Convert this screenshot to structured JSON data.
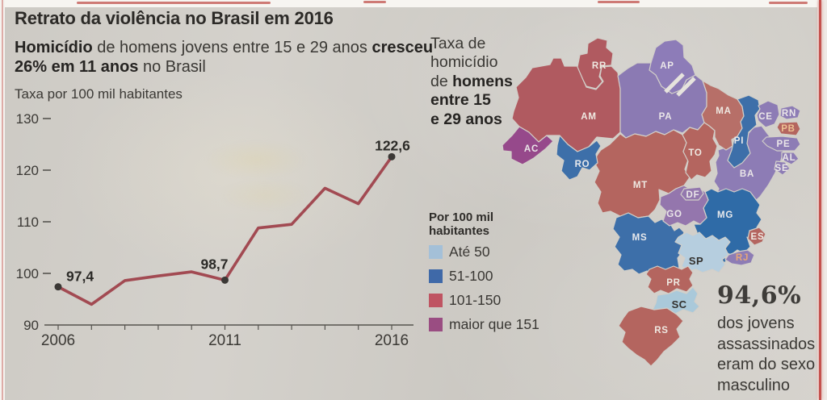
{
  "page": {
    "title": "Retrato da violência no Brasil em 2016",
    "subtitle_segments": [
      {
        "text": "Homicídio",
        "bold": true
      },
      {
        "text": " de homens jovens entre 15 e 29 anos ",
        "bold": false
      },
      {
        "text": "cresceu\n26% em 11 anos",
        "bold": true
      },
      {
        "text": " no Brasil",
        "bold": false
      }
    ],
    "stat": {
      "value": "94,6%",
      "description": "dos jovens\nassassinados\neram do sexo\nmasculino"
    }
  },
  "map_intro_segments": [
    {
      "text": "Taxa de\nhomicídio\nde ",
      "bold": false
    },
    {
      "text": "homens\nentre 15\ne 29 anos",
      "bold": true
    }
  ],
  "chart_data": [
    {
      "type": "line",
      "title": "Homicídio de homens jovens entre 15 e 29 anos cresceu 26% em 11 anos no Brasil",
      "ylabel": "Taxa por 100 mil habitantes",
      "x": [
        2006,
        2007,
        2008,
        2009,
        2010,
        2011,
        2012,
        2013,
        2014,
        2015,
        2016
      ],
      "values": [
        97.4,
        94.0,
        98.6,
        99.5,
        100.3,
        98.7,
        108.8,
        109.5,
        116.5,
        113.5,
        122.6
      ],
      "ylim": [
        90,
        130
      ],
      "yticks": [
        90,
        100,
        110,
        120,
        130
      ],
      "xtick_labels": [
        2006,
        2011,
        2016
      ],
      "grid": false,
      "line_color": "#a24a52",
      "point_color": "#3b3835",
      "tick_color": "#56544f",
      "text_color": "#3b3935",
      "annotations": [
        {
          "x": 2006,
          "label": "97,4"
        },
        {
          "x": 2011,
          "label": "98,7"
        },
        {
          "x": 2016,
          "label": "122,6"
        }
      ]
    },
    {
      "type": "choropleth",
      "title": "Taxa de homicídio de homens entre 15 e 29 anos",
      "unit": "Por 100 mil habitantes",
      "legend": [
        {
          "label": "Até 50",
          "color": "#a4c0d8"
        },
        {
          "label": "51-100",
          "color": "#3f69a8"
        },
        {
          "label": "101-150",
          "color": "#bf5462"
        },
        {
          "label": "maior que 151",
          "color": "#9a4d82"
        }
      ],
      "states": [
        {
          "code": "AM",
          "value": "101-150",
          "fill": "#b05a60",
          "label_color": "#efe9e2"
        },
        {
          "code": "PA",
          "value": "maior que 151",
          "fill": "#8b7ab3",
          "label_color": "#eae6e8"
        },
        {
          "code": "MT",
          "value": "101-150",
          "fill": "#b4655f",
          "label_color": "#efe9e2"
        },
        {
          "code": "BA",
          "value": "maior que 151",
          "fill": "#8d7cb5",
          "label_color": "#eae6e8"
        },
        {
          "code": "MA",
          "value": "101-150",
          "fill": "#b76f68",
          "label_color": "#efe9e2"
        },
        {
          "code": "TO",
          "value": "101-150",
          "fill": "#b4655f",
          "label_color": "#efe9e2"
        },
        {
          "code": "PI",
          "value": "51-100",
          "fill": "#3d6fa9",
          "label_color": "#e8e9ec"
        },
        {
          "code": "MG",
          "value": "51-100",
          "fill": "#2f6ba7",
          "label_color": "#e8e9ec"
        },
        {
          "code": "MS",
          "value": "51-100",
          "fill": "#3d6fa9",
          "label_color": "#e8e9ec"
        },
        {
          "code": "GO",
          "value": "maior que 151",
          "fill": "#9476ad",
          "label_color": "#eae6e8"
        },
        {
          "code": "SP",
          "value": "Até 50",
          "fill": "#b6cedf",
          "label_color": "#33312e",
          "bold": true
        },
        {
          "code": "RR",
          "value": "101-150",
          "fill": "#b05a60",
          "label_color": "#efe9e2"
        },
        {
          "code": "AP",
          "value": "maior que 151",
          "fill": "#8d7cb8",
          "label_color": "#eae6e8"
        },
        {
          "code": "AC",
          "value": "maior que 151",
          "fill": "#96498b",
          "label_color": "#eae6e8"
        },
        {
          "code": "RO",
          "value": "51-100",
          "fill": "#3d6fa9",
          "label_color": "#e8e9ec"
        },
        {
          "code": "DF",
          "value": "maior que 151",
          "fill": "#9378ae",
          "label_color": "#eae6e8"
        },
        {
          "code": "CE",
          "value": "maior que 151",
          "fill": "#8d7cb5",
          "label_color": "#eae6e8"
        },
        {
          "code": "RN",
          "value": "maior que 151",
          "fill": "#8d7cb5",
          "label_color": "#eae6e8"
        },
        {
          "code": "PB",
          "value": "101-150",
          "fill": "#b4655f",
          "label_color": "#edc193"
        },
        {
          "code": "PE",
          "value": "maior que 151",
          "fill": "#8d7cb5",
          "label_color": "#eae6e8"
        },
        {
          "code": "AL",
          "value": "maior que 151",
          "fill": "#8d7cb5",
          "label_color": "#eae6e8"
        },
        {
          "code": "SE",
          "value": "maior que 151",
          "fill": "#8d7cb5",
          "label_color": "#eae6e8"
        },
        {
          "code": "ES",
          "value": "101-150",
          "fill": "#b4655f",
          "label_color": "#efe9e2"
        },
        {
          "code": "RJ",
          "value": "maior que 151",
          "fill": "#8d7cb5",
          "label_color": "#e5a679"
        },
        {
          "code": "PR",
          "value": "101-150",
          "fill": "#b4655f",
          "label_color": "#efe9e2"
        },
        {
          "code": "SC",
          "value": "Até 50",
          "fill": "#aac9da",
          "label_color": "#33312e",
          "bold": true
        },
        {
          "code": "RS",
          "value": "101-150",
          "fill": "#b4655f",
          "label_color": "#efe9e2"
        }
      ]
    }
  ]
}
